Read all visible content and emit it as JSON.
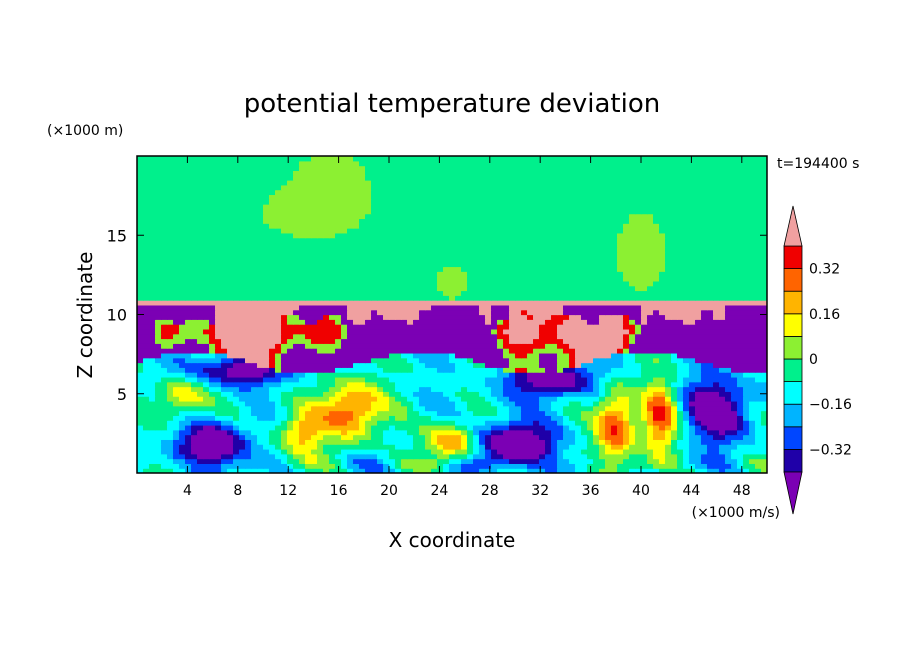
{
  "chart_data": {
    "type": "heatmap",
    "title": "potential temperature deviation",
    "xlabel": "X coordinate",
    "ylabel": "Z coordinate",
    "x_unit": "(×1000 m/s)",
    "y_unit": "(×1000 m)",
    "time_label": "t=194400 s",
    "xlim": [
      0,
      50
    ],
    "ylim": [
      0,
      20
    ],
    "x_ticks": [
      4,
      8,
      12,
      16,
      20,
      24,
      28,
      32,
      36,
      40,
      44,
      48
    ],
    "y_ticks": [
      5,
      10,
      15
    ],
    "colorbar": {
      "levels": [
        -0.4,
        -0.32,
        -0.24,
        -0.16,
        -0.08,
        0,
        0.08,
        0.16,
        0.24,
        0.32,
        0.4
      ],
      "labels": [
        "0.32",
        "0.16",
        "0",
        "−0.16",
        "−0.32"
      ],
      "label_values": [
        0.32,
        0.16,
        0,
        -0.16,
        -0.32
      ],
      "colors": [
        "#7b00b4",
        "#1f00a8",
        "#0046ff",
        "#00b4ff",
        "#00ffff",
        "#00f08c",
        "#8cf032",
        "#ffff00",
        "#ffb400",
        "#ff6400",
        "#f00000",
        "#f0a0a0"
      ]
    }
  }
}
